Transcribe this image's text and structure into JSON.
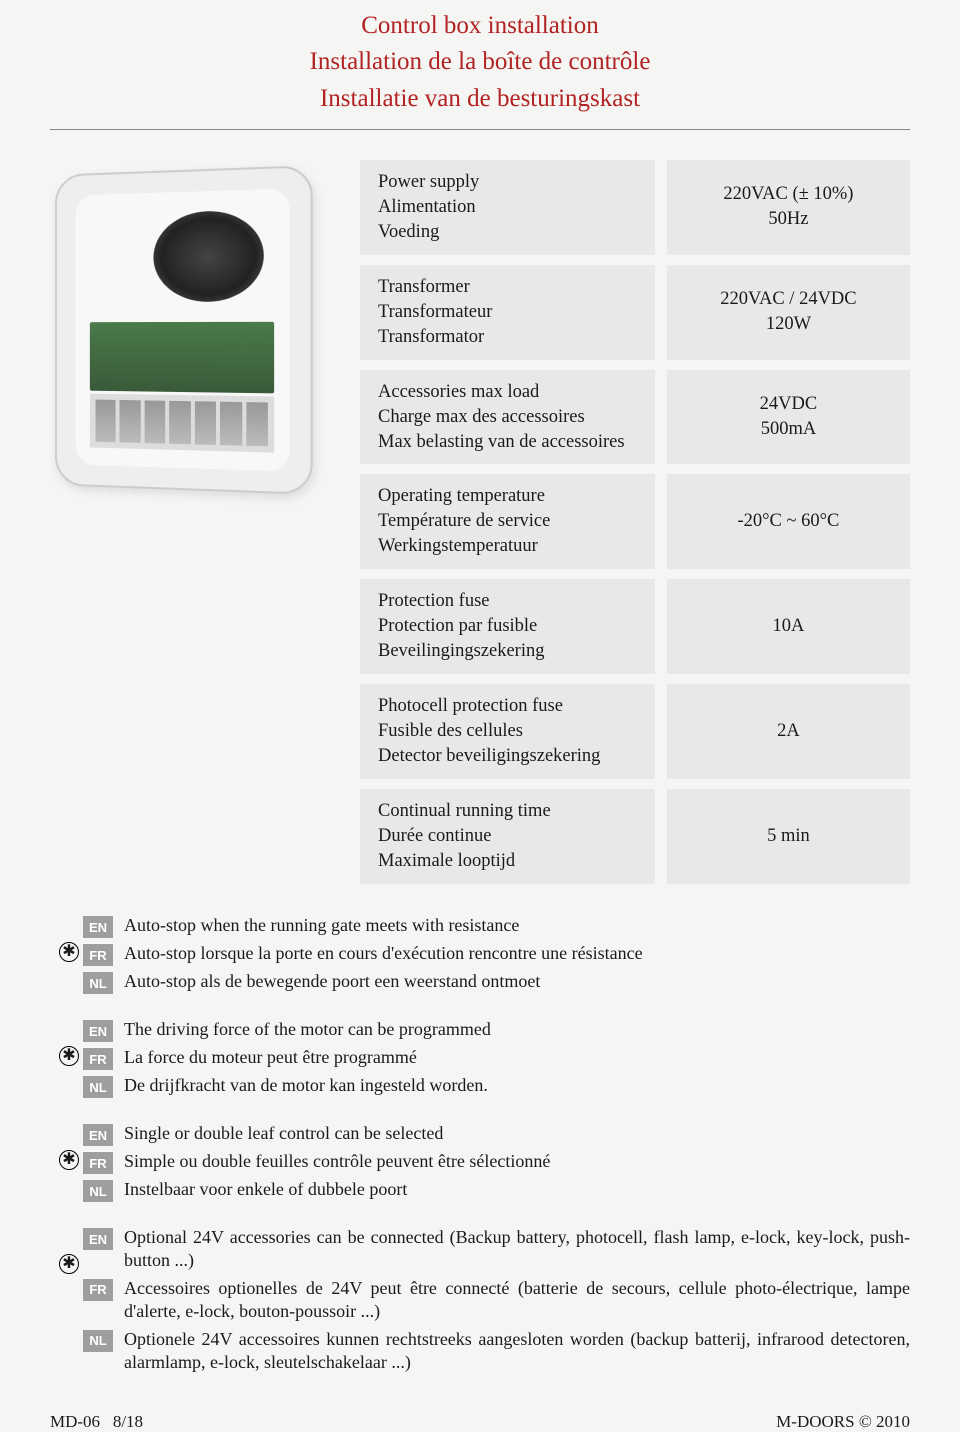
{
  "header": {
    "title_en": "Control box installation",
    "title_fr": "Installation de la boîte de contrôle",
    "title_nl": "Installatie van de besturingskast",
    "title_color": "#b22222"
  },
  "specs": [
    {
      "label_en": "Power supply",
      "label_fr": "Alimentation",
      "label_nl": "Voeding",
      "value_1": "220VAC (± 10%)",
      "value_2": "50Hz"
    },
    {
      "label_en": "Transformer",
      "label_fr": "Transformateur",
      "label_nl": "Transformator",
      "value_1": "220VAC / 24VDC",
      "value_2": "120W"
    },
    {
      "label_en": "Accessories max load",
      "label_fr": "Charge max des accessoires",
      "label_nl": "Max belasting van de accessoires",
      "value_1": "24VDC",
      "value_2": "500mA"
    },
    {
      "label_en": "Operating temperature",
      "label_fr": "Température de service",
      "label_nl": "Werkingstemperatuur",
      "value_1": "-20°C ~ 60°C",
      "value_2": ""
    },
    {
      "label_en": "Protection fuse",
      "label_fr": "Protection par fusible",
      "label_nl": "Beveilingingszekering",
      "value_1": "10A",
      "value_2": ""
    },
    {
      "label_en": "Photocell protection fuse",
      "label_fr": "Fusible des cellules",
      "label_nl": "Detector beveiligingszekering",
      "value_1": "2A",
      "value_2": ""
    },
    {
      "label_en": "Continual running time",
      "label_fr": "Durée continue",
      "label_nl": "Maximale looptijd",
      "value_1": "5 min",
      "value_2": ""
    }
  ],
  "features": [
    {
      "en": "Auto-stop when the running gate meets with resistance",
      "fr": "Auto-stop lorsque la porte en cours d'exécution rencontre une résistance",
      "nl": "Auto-stop als de bewegende poort een weerstand ontmoet"
    },
    {
      "en": "The driving force of the motor can be programmed",
      "fr": "La force du moteur peut être programmé",
      "nl": "De drijfkracht van de motor kan ingesteld worden."
    },
    {
      "en": "Single or double leaf control can be selected",
      "fr": "Simple ou double feuilles contrôle peuvent être sélectionné",
      "nl": "Instelbaar voor enkele of dubbele poort"
    },
    {
      "en": "Optional 24V accessories can be connected (Backup battery, photocell, flash lamp, e-lock, key-lock, push-button ...)",
      "fr": "Accessoires optionelles de 24V peut être connecté (batterie de secours, cellule photo-électrique, lampe d'alerte, e-lock, bouton-poussoir ...)",
      "nl": "Optionele 24V accessoires kunnen rechtstreeks aangesloten worden (backup batterij, infrarood detectoren, alarmlamp, e-lock, sleutelschakelaar ...)",
      "justified": true
    }
  ],
  "lang_labels": {
    "en": "EN",
    "fr": "FR",
    "nl": "NL"
  },
  "footer": {
    "left_code": "MD-06",
    "left_page": "8/18",
    "right": "M-DOORS © 2010"
  },
  "colors": {
    "cell_bg": "#e8e8e6",
    "badge_bg": "#9e9e9e",
    "page_bg": "#f5f5f3"
  }
}
